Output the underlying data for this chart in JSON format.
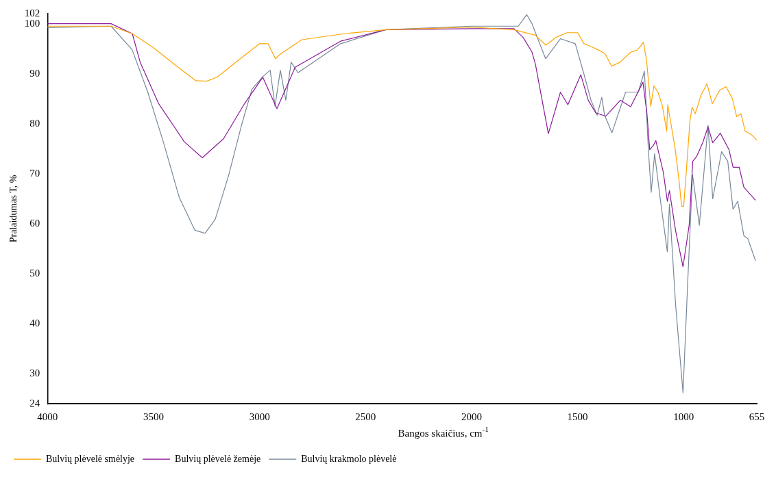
{
  "chart_data": {
    "type": "line",
    "xlabel": "Bangos skaičius, cm$^{-1}$",
    "ylabel": "Pralaidumas T, %",
    "xlim": [
      4000,
      655
    ],
    "xticks": [
      4000,
      3500,
      3000,
      2500,
      2000,
      1500,
      1000,
      655
    ],
    "ylim": [
      24,
      102
    ],
    "yticks": [
      24,
      30,
      40,
      50,
      60,
      70,
      80,
      90,
      100,
      102
    ],
    "grid": false,
    "legend": "bottom left",
    "marker": "none",
    "line_style": "solid",
    "series": [
      {
        "name": "Bulvių plėvelė smėlyje",
        "color": "#ffa500",
        "x": [
          4000,
          3700,
          3600,
          3500,
          3400,
          3300,
          3250,
          3200,
          3100,
          3000,
          2960,
          2925,
          2900,
          2800,
          2600,
          2400,
          2000,
          1800,
          1700,
          1650,
          1600,
          1550,
          1500,
          1470,
          1440,
          1400,
          1370,
          1340,
          1300,
          1250,
          1220,
          1200,
          1190,
          1175,
          1155,
          1140,
          1120,
          1100,
          1080,
          1075,
          1060,
          1040,
          1020,
          1010,
          1000,
          990,
          970,
          960,
          945,
          920,
          890,
          865,
          830,
          800,
          770,
          750,
          730,
          710,
          680,
          655
        ],
        "values": [
          99.5,
          99.5,
          98,
          95.2,
          91.8,
          88.6,
          88.5,
          89.3,
          92.7,
          96,
          96,
          93,
          94,
          96.8,
          98,
          98.8,
          99.3,
          98.8,
          97.7,
          95.7,
          97.3,
          98.2,
          98.2,
          96,
          95.5,
          94.7,
          94,
          91.5,
          92.3,
          94.3,
          94.7,
          95.7,
          96.3,
          92.7,
          83.5,
          87.6,
          86.2,
          83.5,
          78.5,
          83.8,
          80,
          75,
          68,
          63.5,
          63.5,
          69,
          80.7,
          83.3,
          82,
          85.5,
          88,
          84,
          86.7,
          87.4,
          85,
          81.4,
          82,
          78.5,
          77.8,
          76.7
        ]
      },
      {
        "name": "Bulvių plėvelė žemėje",
        "color": "#8b1a9b",
        "x": [
          4000,
          3700,
          3600,
          3563,
          3477,
          3355,
          3270,
          3170,
          3071,
          2985,
          2918,
          2832,
          2618,
          2404,
          2000,
          1800,
          1756,
          1715,
          1699,
          1638,
          1581,
          1546,
          1485,
          1450,
          1415,
          1368,
          1298,
          1250,
          1192,
          1173,
          1160,
          1144,
          1131,
          1096,
          1077,
          1067,
          1038,
          1003,
          974,
          957,
          938,
          910,
          885,
          863,
          827,
          786,
          767,
          738,
          716,
          661
        ],
        "values": [
          100,
          100,
          98,
          92.3,
          84.1,
          76.4,
          73.2,
          77,
          84,
          89.3,
          83,
          91.3,
          96.5,
          98.8,
          99,
          99,
          97.2,
          94.3,
          91.9,
          78,
          86.3,
          83.8,
          89.8,
          84.7,
          82.2,
          81.5,
          84.7,
          83.4,
          88.3,
          82,
          74.8,
          75.6,
          76.6,
          70.3,
          64.5,
          66.6,
          58.6,
          51.4,
          59.7,
          72.5,
          73.5,
          76.2,
          79.4,
          76.2,
          78.1,
          74.8,
          71.3,
          71.3,
          67.3,
          64.7
        ]
      },
      {
        "name": "Bulvių krakmolo plėvelė",
        "color": "#778899",
        "x": [
          4000,
          3700,
          3601,
          3527,
          3454,
          3379,
          3305,
          3257,
          3209,
          3145,
          3085,
          3036,
          2985,
          2950,
          2927,
          2902,
          2876,
          2851,
          2819,
          2618,
          2404,
          2000,
          1780,
          1740,
          1715,
          1699,
          1651,
          1581,
          1511,
          1472,
          1437,
          1408,
          1386,
          1373,
          1338,
          1274,
          1214,
          1185,
          1166,
          1153,
          1137,
          1109,
          1077,
          1067,
          1038,
          1003,
          980,
          958,
          926,
          885,
          863,
          821,
          792,
          767,
          745,
          716,
          697,
          661
        ],
        "values": [
          99.2,
          99.5,
          94.8,
          86.3,
          76.4,
          65.3,
          58.7,
          58.1,
          60.9,
          69.8,
          79.7,
          86.9,
          89.4,
          90.7,
          83.5,
          90.7,
          84.7,
          92.3,
          90.2,
          96,
          98.8,
          99.5,
          99.5,
          101.8,
          100,
          98.2,
          93,
          97,
          96,
          90.2,
          84.7,
          81.7,
          85.3,
          81.7,
          78.2,
          86.3,
          86.3,
          90.5,
          74.5,
          66.3,
          74,
          64.5,
          54.4,
          63.9,
          43.8,
          26.2,
          49.1,
          69.8,
          59.7,
          79.7,
          65,
          74.4,
          72.5,
          62.9,
          64.5,
          57.6,
          57,
          52.6
        ]
      }
    ]
  }
}
